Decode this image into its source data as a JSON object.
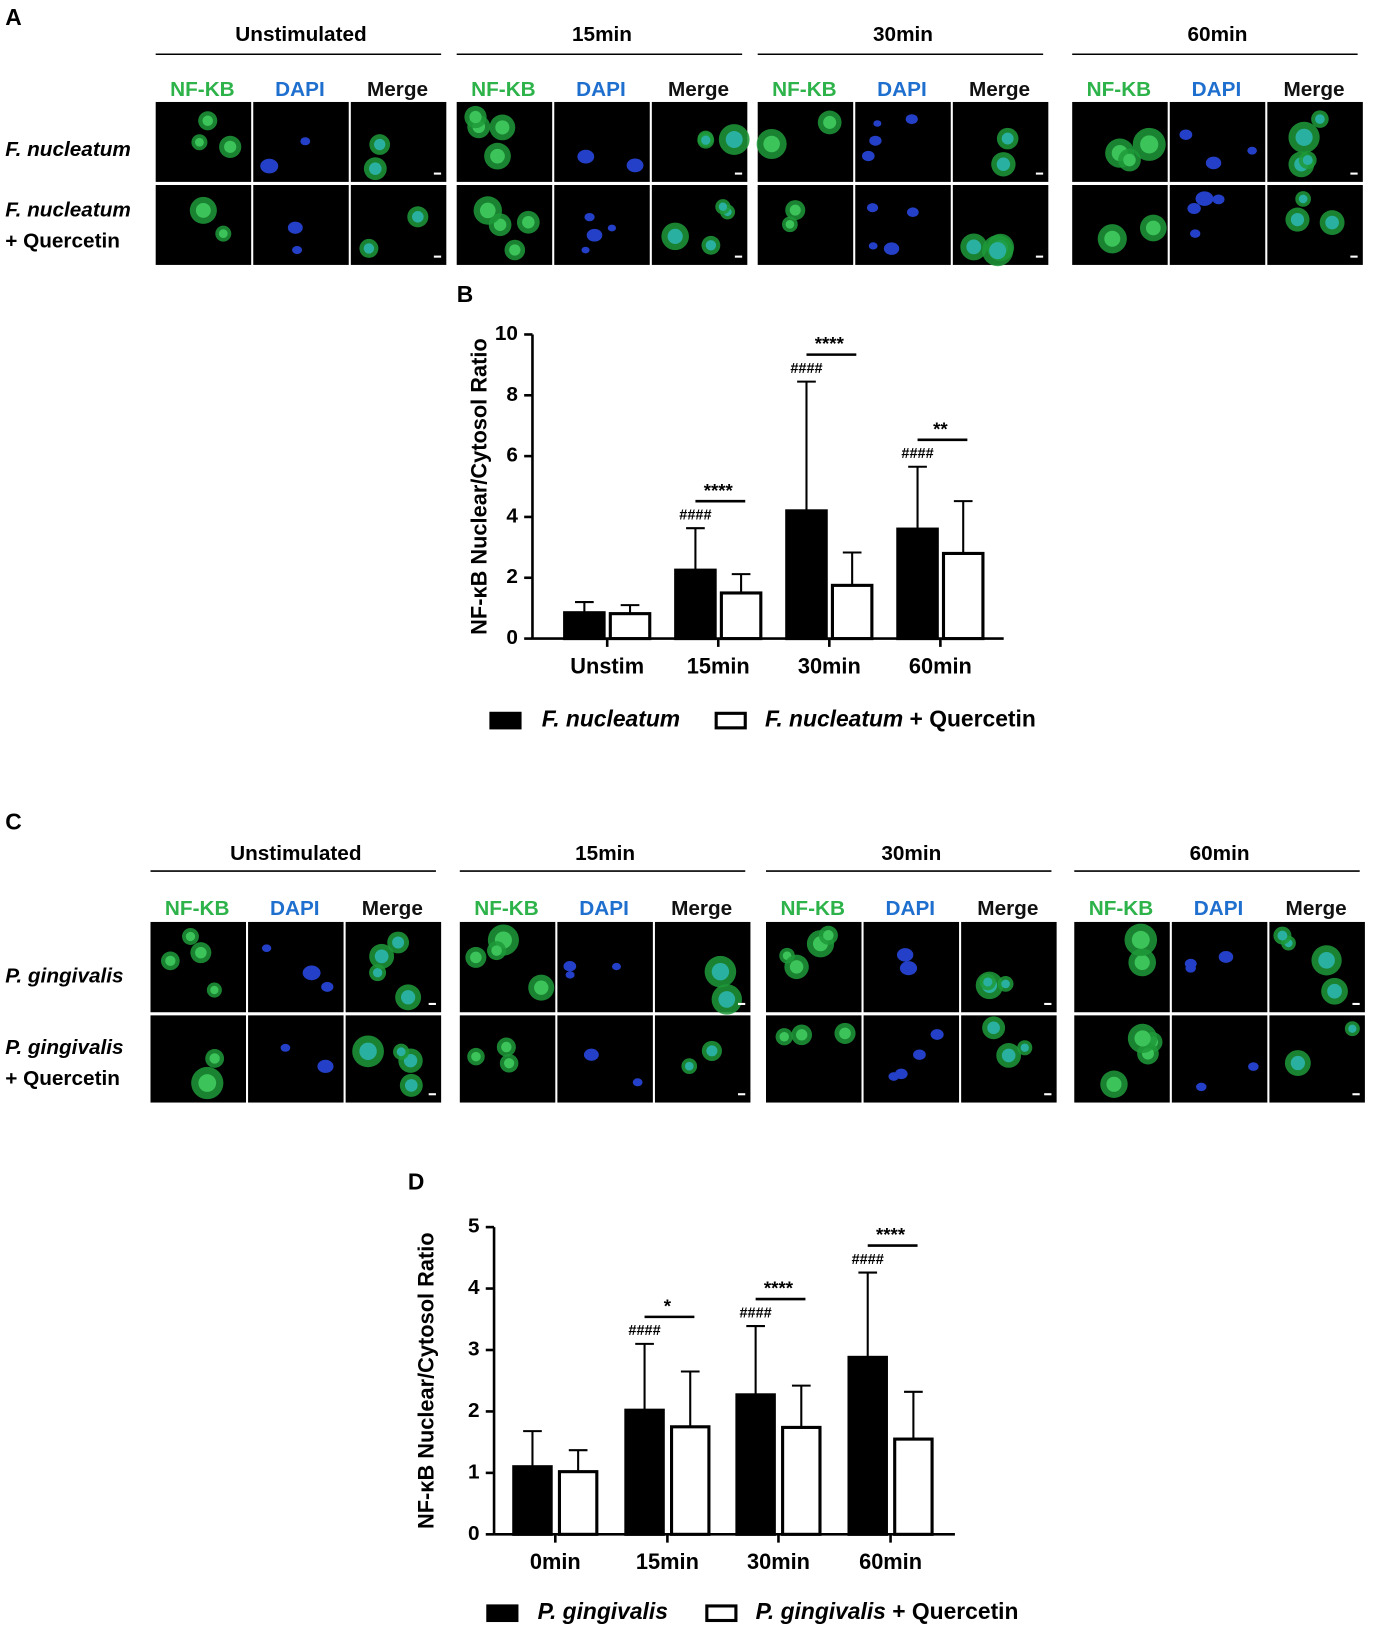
{
  "panels": [
    {
      "letter": "A",
      "columns": [
        "Unstimulated",
        "15min",
        "30min",
        "60min"
      ],
      "channels": [
        "NF-KB",
        "DAPI",
        "Merge"
      ],
      "channel_colors": [
        "#2db34a",
        "#1f6fcf",
        "#111111"
      ],
      "rows": [
        [
          "F. nucleatum"
        ],
        [
          "F. nucleatum",
          "+ Quercetin"
        ]
      ]
    },
    {
      "letter": "C",
      "columns": [
        "Unstimulated",
        "15min",
        "30min",
        "60min"
      ],
      "channels": [
        "NF-KB",
        "DAPI",
        "Merge"
      ],
      "channel_colors": [
        "#2db34a",
        "#1f6fcf",
        "#111111"
      ],
      "rows": [
        [
          "P. gingivalis"
        ],
        [
          "P. gingivalis",
          "+ Quercetin"
        ]
      ]
    }
  ],
  "chart_data": [
    {
      "type": "bar",
      "letter": "B",
      "y_label": "NF-κB Nuclear/Cytosol Ratio",
      "categories": [
        "Unstim",
        "15min",
        "30min",
        "60min"
      ],
      "series": [
        {
          "name": "F. nucleatum",
          "color": "#000000",
          "values": [
            0.85,
            2.25,
            4.2,
            3.6
          ],
          "errors": [
            0.35,
            1.38,
            4.25,
            2.05
          ],
          "hash_labels": [
            null,
            "####",
            "####",
            "####"
          ]
        },
        {
          "name": "F. nucleatum + Quercetin",
          "color": "#ffffff",
          "values": [
            0.82,
            1.5,
            1.75,
            2.8
          ],
          "errors": [
            0.28,
            0.62,
            1.08,
            1.72
          ]
        }
      ],
      "sig_labels": [
        null,
        "****",
        "****",
        "**"
      ],
      "ylim": [
        0,
        10
      ],
      "yticks": [
        0,
        2,
        4,
        6,
        8,
        10
      ]
    },
    {
      "type": "bar",
      "letter": "D",
      "y_label": "NF-κB Nuclear/Cytosol Ratio",
      "categories": [
        "0min",
        "15min",
        "30min",
        "60min"
      ],
      "series": [
        {
          "name": "P. gingivalis",
          "color": "#000000",
          "values": [
            1.1,
            2.02,
            2.27,
            2.88
          ],
          "errors": [
            0.58,
            1.08,
            1.12,
            1.38
          ],
          "hash_labels": [
            null,
            "####",
            "####",
            "####"
          ]
        },
        {
          "name": "P. gingivalis + Quercetin",
          "color": "#ffffff",
          "values": [
            1.02,
            1.75,
            1.74,
            1.55
          ],
          "errors": [
            0.35,
            0.9,
            0.68,
            0.77
          ]
        }
      ],
      "sig_labels": [
        null,
        "*",
        "****",
        "****"
      ],
      "ylim": [
        0,
        5
      ],
      "yticks": [
        0,
        1,
        2,
        3,
        4,
        5
      ]
    }
  ]
}
